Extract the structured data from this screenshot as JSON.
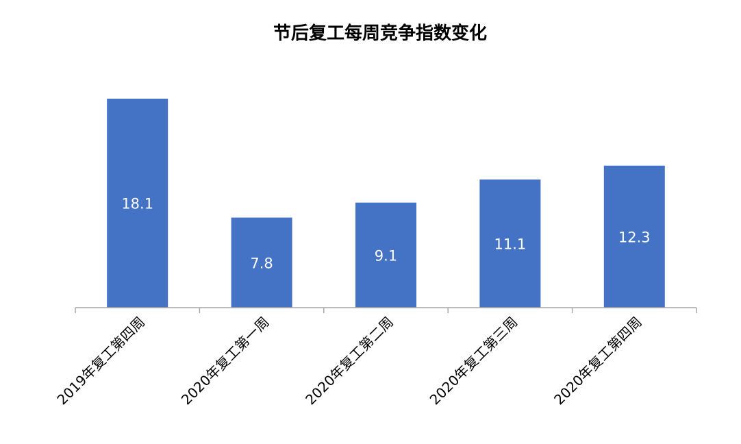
{
  "chart_data": {
    "type": "bar",
    "title": "节后复工每周竞争指数变化",
    "categories": [
      "2019年复工第四周",
      "2020年复工第一周",
      "2020年复工第二周",
      "2020年复工第三周",
      "2020年复工第四周"
    ],
    "values": [
      18.1,
      7.8,
      9.1,
      11.1,
      12.3
    ],
    "xlabel": "",
    "ylabel": "",
    "ylim": [
      0,
      18.1
    ],
    "grid": false,
    "legend": "none",
    "data_labels": "inside-center"
  },
  "colors": {
    "bar": "#4472C4",
    "axis": "#A6A6A6",
    "label": "#FFFFFF"
  }
}
